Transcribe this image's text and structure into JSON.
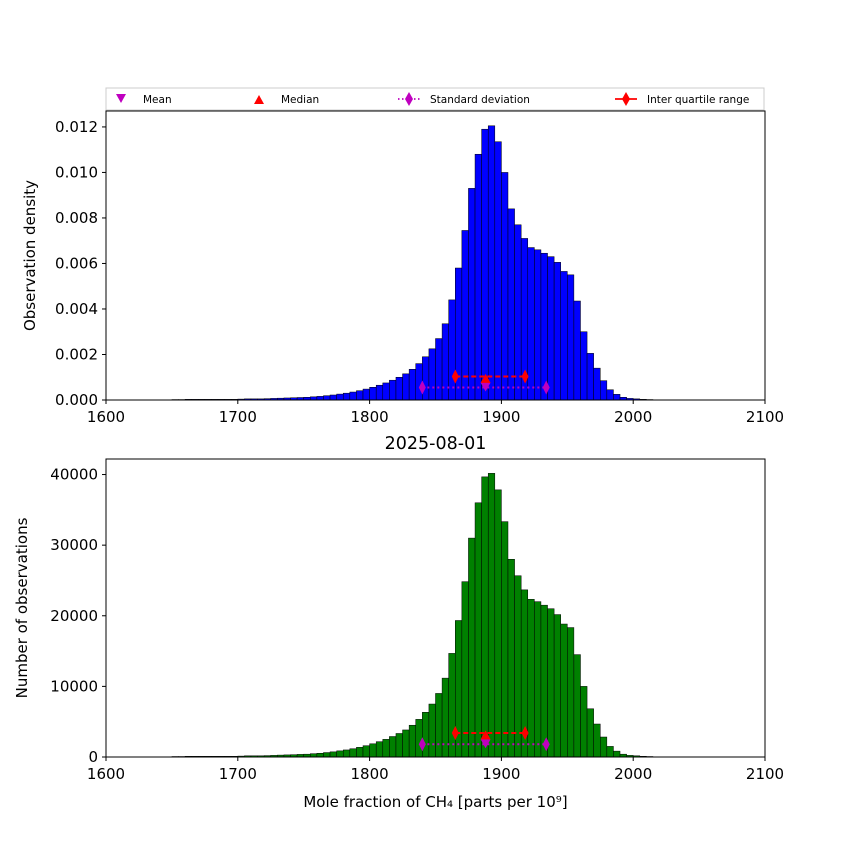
{
  "legend": {
    "entries": [
      {
        "label": "Mean",
        "marker": "triangle-down",
        "color": "#bf00bf",
        "line": "none"
      },
      {
        "label": "Median",
        "marker": "triangle-up",
        "color": "#ff0000",
        "line": "none"
      },
      {
        "label": "Standard deviation",
        "marker": "thin-diamond",
        "color": "#bf00bf",
        "line": "dotted"
      },
      {
        "label": "Inter quartile range",
        "marker": "thin-diamond",
        "color": "#ff0000",
        "line": "solid"
      }
    ],
    "placement": "top"
  },
  "chart_data": [
    {
      "type": "bar",
      "subtype": "histogram",
      "title": "",
      "xlabel": "",
      "ylabel": "Observation density",
      "xlim": [
        1600,
        2100
      ],
      "ylim": [
        0,
        0.0127
      ],
      "xticks": [
        "1600",
        "1700",
        "1800",
        "1900",
        "2000",
        "2100"
      ],
      "yticks": [
        "0.000",
        "0.002",
        "0.004",
        "0.006",
        "0.008",
        "0.010",
        "0.012"
      ],
      "ytick_values": [
        0,
        0.002,
        0.004,
        0.006,
        0.008,
        0.01,
        0.012
      ],
      "grid": false,
      "bar_color": "#0000ff",
      "bin_start": 1650,
      "bin_width": 5,
      "values": [
        2e-05,
        2e-05,
        3e-05,
        3e-05,
        3e-05,
        3e-05,
        3e-05,
        3e-05,
        3e-05,
        3e-05,
        4e-05,
        5e-05,
        5e-05,
        5e-05,
        6e-05,
        7e-05,
        8e-05,
        9e-05,
        0.0001,
        0.00011,
        0.00012,
        0.00014,
        0.00016,
        0.00019,
        0.00022,
        0.00026,
        0.0003,
        0.00035,
        0.00041,
        0.00048,
        0.00056,
        0.00065,
        0.00075,
        0.00087,
        0.001,
        0.00115,
        0.00135,
        0.0016,
        0.0019,
        0.00225,
        0.0027,
        0.00335,
        0.0044,
        0.0058,
        0.00745,
        0.0093,
        0.0108,
        0.0119,
        0.01205,
        0.01135,
        0.01,
        0.0084,
        0.0077,
        0.0071,
        0.0067,
        0.0066,
        0.00645,
        0.0063,
        0.00605,
        0.00565,
        0.0055,
        0.00435,
        0.003,
        0.00205,
        0.0014,
        0.00085,
        0.00045,
        0.00025,
        0.00012,
        7e-05,
        5e-05,
        3e-05,
        2e-05
      ],
      "stats": {
        "mean": {
          "x": 1888,
          "y": 0.00055
        },
        "median": {
          "x": 1888,
          "y": 0.00097
        },
        "std": {
          "x": [
            1840,
            1934
          ],
          "y": 0.00055
        },
        "iqr": {
          "x": [
            1865,
            1918
          ],
          "y": 0.00103
        }
      }
    },
    {
      "type": "bar",
      "subtype": "histogram",
      "title": "2025-08-01",
      "xlabel": "Mole fraction of CH₄ [parts per 10⁹]",
      "ylabel": "Number of observations",
      "xlim": [
        1600,
        2100
      ],
      "ylim": [
        0,
        42200
      ],
      "xticks": [
        "1600",
        "1700",
        "1800",
        "1900",
        "2000",
        "2100"
      ],
      "yticks": [
        "0",
        "10000",
        "20000",
        "30000",
        "40000"
      ],
      "ytick_values": [
        0,
        10000,
        20000,
        30000,
        40000
      ],
      "grid": false,
      "bar_color": "#008000",
      "bin_start": 1650,
      "bin_width": 5,
      "values": [
        70,
        70,
        100,
        100,
        100,
        100,
        100,
        100,
        100,
        100,
        130,
        170,
        170,
        170,
        200,
        230,
        270,
        300,
        330,
        370,
        400,
        470,
        530,
        630,
        730,
        870,
        1000,
        1170,
        1370,
        1600,
        1870,
        2170,
        2500,
        2900,
        3330,
        3830,
        4500,
        5330,
        6330,
        7500,
        9000,
        11170,
        14670,
        19330,
        24830,
        31000,
        36000,
        39670,
        40170,
        37830,
        33330,
        28000,
        25670,
        23670,
        22330,
        22000,
        21500,
        21000,
        20170,
        18830,
        18330,
        14500,
        10000,
        6830,
        4670,
        2830,
        1500,
        830,
        400,
        230,
        170,
        100,
        70
      ],
      "stats": {
        "mean": {
          "x": 1888,
          "y": 1800
        },
        "median": {
          "x": 1888,
          "y": 3200
        },
        "std": {
          "x": [
            1840,
            1934
          ],
          "y": 1800
        },
        "iqr": {
          "x": [
            1865,
            1918
          ],
          "y": 3400
        }
      }
    }
  ]
}
